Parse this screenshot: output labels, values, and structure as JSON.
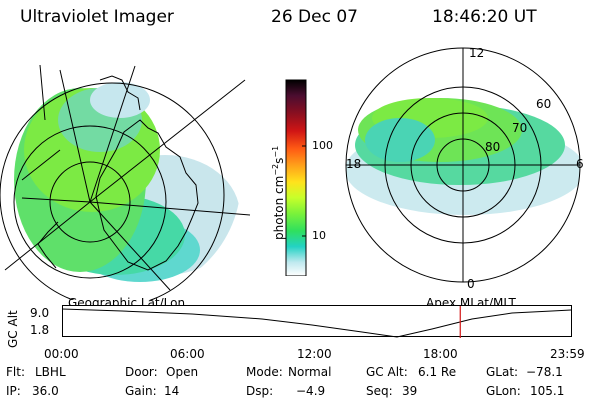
{
  "header": {
    "title": "Ultraviolet Imager",
    "date": "26 Dec 07",
    "time": "18:46:20 UT"
  },
  "geographic_panel": {
    "label": "Geographic Lat/Lon"
  },
  "colorbar": {
    "unit_main": "photon cm",
    "unit_sup1": "−2",
    "unit_s": "s",
    "unit_sup2": "−1",
    "tick_high": "100",
    "tick_low": "10",
    "colors": [
      "#000000",
      "#4b0d30",
      "#8a0f20",
      "#d01515",
      "#ff5a14",
      "#ff9c1a",
      "#ffe21c",
      "#c8ff2a",
      "#7cf23a",
      "#2fe05e",
      "#23d2c4",
      "#bfe9ef",
      "#ffffff"
    ]
  },
  "polar_panel": {
    "label": "Apex MLat/MLT",
    "mlt_labels": {
      "top": "12",
      "left": "18",
      "right": "6",
      "bottom": "0"
    },
    "lat_labels": [
      "60",
      "70",
      "80"
    ]
  },
  "altitude_plot": {
    "ylabel": "GC Alt",
    "y_high": "9.0",
    "y_low": "1.8",
    "x_ticks": [
      "00:00",
      "06:00",
      "12:00",
      "18:00",
      "23:59"
    ],
    "current_time_fraction": 0.782
  },
  "info": {
    "filter_label": "Flt:",
    "filter_value": "LBHL",
    "door_label": "Door:",
    "door_value": "Open",
    "mode_label": "Mode:",
    "mode_value": "Normal",
    "gcalt_label": "GC Alt:",
    "gcalt_value": "6.1 Re",
    "glat_label": "GLat:",
    "glat_value": "−78.1",
    "ip_label": "IP:",
    "ip_value": "36.0",
    "gain_label": "Gain:",
    "gain_value": "14",
    "dsp_label": "Dsp:",
    "dsp_value": "−4.9",
    "seq_label": "Seq:",
    "seq_value": "39",
    "glon_label": "GLon:",
    "glon_value": "105.1"
  }
}
